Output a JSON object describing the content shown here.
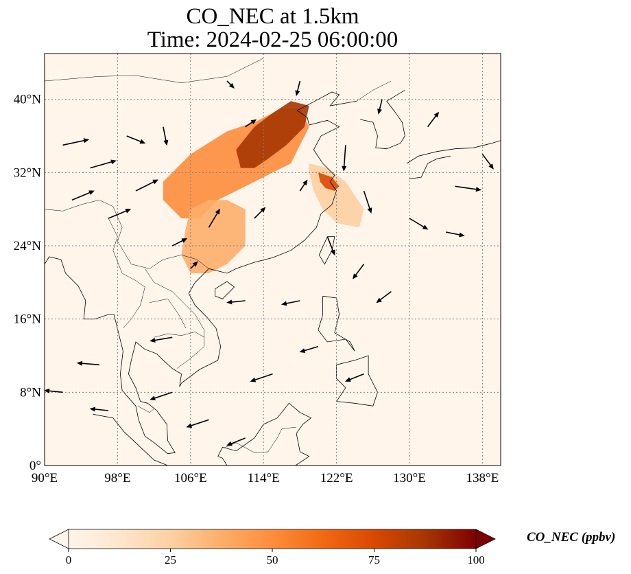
{
  "title": {
    "line1": "CO_NEC at 1.5km",
    "line2": "Time: 2024-02-25 06:00:00"
  },
  "map": {
    "lon_range": [
      90,
      140
    ],
    "lat_range": [
      0,
      45
    ],
    "lon_ticks": [
      {
        "value": 90,
        "label": "90°E"
      },
      {
        "value": 98,
        "label": "98°E"
      },
      {
        "value": 106,
        "label": "106°E"
      },
      {
        "value": 114,
        "label": "114°E"
      },
      {
        "value": 122,
        "label": "122°E"
      },
      {
        "value": 130,
        "label": "130°E"
      },
      {
        "value": 138,
        "label": "138°E"
      }
    ],
    "lat_ticks": [
      {
        "value": 0,
        "label": "0°"
      },
      {
        "value": 8,
        "label": "8°N"
      },
      {
        "value": 16,
        "label": "16°N"
      },
      {
        "value": 24,
        "label": "24°N"
      },
      {
        "value": 32,
        "label": "32°N"
      },
      {
        "value": 40,
        "label": "40°N"
      }
    ],
    "gridlines": true,
    "background_color": "#fff5eb"
  },
  "colorbar": {
    "label": "CO_NEC (ppbv)",
    "ticks": [
      {
        "value": 0,
        "label": "0"
      },
      {
        "value": 25,
        "label": "25"
      },
      {
        "value": 50,
        "label": "50"
      },
      {
        "value": 75,
        "label": "75"
      },
      {
        "value": 100,
        "label": "100"
      }
    ],
    "range": [
      0,
      100
    ],
    "colors": [
      "#fff5eb",
      "#fee6ce",
      "#fdd0a2",
      "#fdae6b",
      "#fd8d3c",
      "#f16913",
      "#d94801",
      "#a63603",
      "#7f0000"
    ],
    "extend": "both"
  },
  "concentration_regions": [
    {
      "points": [
        [
          104,
          32
        ],
        [
          106,
          34
        ],
        [
          110,
          36.5
        ],
        [
          113,
          37.5
        ],
        [
          116,
          39
        ],
        [
          118,
          39
        ],
        [
          119,
          37
        ],
        [
          118,
          35
        ],
        [
          117,
          33
        ],
        [
          115,
          32
        ],
        [
          113,
          31
        ],
        [
          111,
          30
        ],
        [
          109,
          29
        ],
        [
          107,
          27
        ],
        [
          105,
          27
        ],
        [
          103,
          29
        ],
        [
          103,
          31
        ]
      ],
      "value": 45
    },
    {
      "points": [
        [
          119,
          33
        ],
        [
          121,
          32.5
        ],
        [
          123,
          31
        ],
        [
          124,
          29.5
        ],
        [
          125,
          28
        ],
        [
          124.5,
          26
        ],
        [
          122,
          26.5
        ],
        [
          120.5,
          28
        ],
        [
          119.5,
          30
        ],
        [
          119,
          32
        ]
      ],
      "value": 30
    },
    {
      "points": [
        [
          106,
          28
        ],
        [
          108,
          29
        ],
        [
          110,
          29
        ],
        [
          112,
          28
        ],
        [
          112,
          24
        ],
        [
          110,
          22
        ],
        [
          108,
          21
        ],
        [
          106,
          21
        ],
        [
          105,
          23
        ],
        [
          105.5,
          26
        ]
      ],
      "value": 32
    },
    {
      "points": [
        [
          111,
          34.5
        ],
        [
          113,
          37
        ],
        [
          115,
          38.5
        ],
        [
          117,
          39.8
        ],
        [
          119,
          39.3
        ],
        [
          118.5,
          37
        ],
        [
          116.5,
          35
        ],
        [
          114.5,
          33.5
        ],
        [
          113,
          32.5
        ],
        [
          111.5,
          32.5
        ]
      ],
      "value": 90
    },
    {
      "points": [
        [
          120,
          32
        ],
        [
          121.5,
          31.5
        ],
        [
          122.3,
          30.5
        ],
        [
          121.8,
          30
        ],
        [
          120.8,
          30.3
        ],
        [
          120.2,
          31
        ]
      ],
      "value": 75
    }
  ],
  "wind_vectors": [
    {
      "lon": 92,
      "lat": 35,
      "u": 7,
      "v": 1.5
    },
    {
      "lon": 95,
      "lat": 32.5,
      "u": 7,
      "v": 2
    },
    {
      "lon": 93,
      "lat": 29,
      "u": 6,
      "v": 2.5
    },
    {
      "lon": 97,
      "lat": 27,
      "u": 6,
      "v": 2.5
    },
    {
      "lon": 100,
      "lat": 30,
      "u": 6,
      "v": 3
    },
    {
      "lon": 104,
      "lat": 24,
      "u": 4,
      "v": 2
    },
    {
      "lon": 108,
      "lat": 26,
      "u": 3,
      "v": 5
    },
    {
      "lon": 106,
      "lat": 21.5,
      "u": 2,
      "v": 2
    },
    {
      "lon": 113,
      "lat": 27,
      "u": 3,
      "v": 3
    },
    {
      "lon": 118,
      "lat": 30,
      "u": 2,
      "v": 3
    },
    {
      "lon": 112,
      "lat": 37,
      "u": 3,
      "v": 2
    },
    {
      "lon": 123,
      "lat": 35,
      "u": -0.5,
      "v": -7
    },
    {
      "lon": 125,
      "lat": 30,
      "u": 2,
      "v": -6
    },
    {
      "lon": 121,
      "lat": 25,
      "u": 2,
      "v": -5
    },
    {
      "lon": 125,
      "lat": 22,
      "u": -3,
      "v": -4
    },
    {
      "lon": 128,
      "lat": 19,
      "u": -4,
      "v": -3
    },
    {
      "lon": 118,
      "lat": 18,
      "u": -5,
      "v": -1
    },
    {
      "lon": 112,
      "lat": 18,
      "u": -5,
      "v": -0.5
    },
    {
      "lon": 104,
      "lat": 14,
      "u": -6,
      "v": -1
    },
    {
      "lon": 96,
      "lat": 11,
      "u": -6,
      "v": 0.5
    },
    {
      "lon": 92,
      "lat": 8,
      "u": -5,
      "v": 0.5
    },
    {
      "lon": 97,
      "lat": 6,
      "u": -5,
      "v": 0.5
    },
    {
      "lon": 104,
      "lat": 8,
      "u": -6,
      "v": -2
    },
    {
      "lon": 108,
      "lat": 5,
      "u": -6,
      "v": -2
    },
    {
      "lon": 115,
      "lat": 10,
      "u": -6,
      "v": -2
    },
    {
      "lon": 120,
      "lat": 13,
      "u": -5,
      "v": -1.5
    },
    {
      "lon": 125,
      "lat": 10,
      "u": -5,
      "v": -2
    },
    {
      "lon": 112,
      "lat": 3,
      "u": -5,
      "v": -2
    },
    {
      "lon": 130,
      "lat": 27,
      "u": 5,
      "v": -3
    },
    {
      "lon": 134,
      "lat": 25.5,
      "u": 5,
      "v": -1
    },
    {
      "lon": 135,
      "lat": 30.5,
      "u": 7,
      "v": -1
    },
    {
      "lon": 138,
      "lat": 34,
      "u": 3,
      "v": -4
    },
    {
      "lon": 132,
      "lat": 37,
      "u": 3,
      "v": 4
    },
    {
      "lon": 118,
      "lat": 42,
      "u": -1,
      "v": -4
    },
    {
      "lon": 110,
      "lat": 42,
      "u": 2,
      "v": -2
    },
    {
      "lon": 103,
      "lat": 37,
      "u": 1,
      "v": -5
    },
    {
      "lon": 99,
      "lat": 36,
      "u": 5,
      "v": -2
    },
    {
      "lon": 127,
      "lat": 40,
      "u": -1,
      "v": -4
    }
  ]
}
